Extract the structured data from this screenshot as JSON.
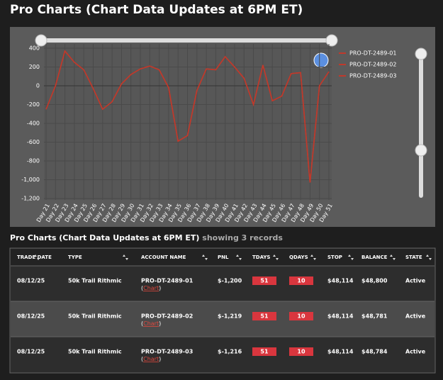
{
  "header": {
    "title": "Pro Charts (Chart Data Updates at 6PM ET)"
  },
  "chart_data": {
    "type": "line",
    "categories": [
      "Day 21",
      "Day 22",
      "Day 23",
      "Day 24",
      "Day 25",
      "Day 26",
      "Day 27",
      "Day 28",
      "Day 29",
      "Day 30",
      "Day 31",
      "Day 32",
      "Day 33",
      "Day 34",
      "Day 35",
      "Day 36",
      "Day 37",
      "Day 38",
      "Day 39",
      "Day 40",
      "Day 41",
      "Day 42",
      "Day 43",
      "Day 44",
      "Day 45",
      "Day 46",
      "Day 47",
      "Day 48",
      "Day 49",
      "Day 50",
      "Day 51"
    ],
    "series": [
      {
        "name": "PRO-DT-2489-01",
        "color": "#c0392b",
        "values": [
          -250,
          0,
          370,
          250,
          170,
          -30,
          -250,
          -170,
          20,
          120,
          180,
          210,
          170,
          -20,
          -590,
          -530,
          -50,
          180,
          170,
          310,
          200,
          80,
          -200,
          220,
          -160,
          -110,
          130,
          140,
          -1030,
          0,
          150
        ]
      },
      {
        "name": "PRO-DT-2489-02",
        "color": "#c0392b",
        "values": [
          -250,
          0,
          370,
          250,
          170,
          -30,
          -250,
          -170,
          20,
          120,
          180,
          210,
          170,
          -20,
          -590,
          -530,
          -50,
          180,
          170,
          310,
          200,
          80,
          -200,
          220,
          -160,
          -110,
          130,
          140,
          -1030,
          0,
          150
        ]
      },
      {
        "name": "PRO-DT-2489-03",
        "color": "#c0392b",
        "values": [
          -250,
          0,
          370,
          250,
          170,
          -30,
          -250,
          -170,
          20,
          120,
          180,
          210,
          170,
          -20,
          -590,
          -530,
          -50,
          180,
          170,
          310,
          200,
          80,
          -200,
          220,
          -160,
          -110,
          130,
          140,
          -1030,
          0,
          150
        ]
      }
    ],
    "ylim": [
      -1200,
      400
    ],
    "yticks": [
      {
        "value": -1200,
        "label": "-1,200"
      },
      {
        "value": -1000,
        "label": "-1,000"
      },
      -800,
      -600,
      -400,
      -200,
      0,
      200,
      400
    ],
    "grid": true,
    "legend": "right"
  },
  "table": {
    "title": "Pro Charts (Chart Data Updates at 6PM ET)",
    "subtitle": "showing 3 records",
    "columns": [
      "TRADE DATE",
      "TYPE",
      "ACCOUNT NAME",
      "PNL",
      "TDAYS",
      "QDAYS",
      "STOP",
      "BALANCE",
      "STATE"
    ],
    "rows": [
      [
        "08/12/25",
        "50k Trail Rithmic",
        "PRO-DT-2489-01",
        "$-1,200",
        "51",
        "10",
        "$48,114",
        "$48,800",
        "Active"
      ],
      [
        "08/12/25",
        "50k Trail Rithmic",
        "PRO-DT-2489-02",
        "$-1,219",
        "51",
        "10",
        "$48,114",
        "$48,781",
        "Active"
      ],
      [
        "08/12/25",
        "50k Trail Rithmic",
        "PRO-DT-2489-03",
        "$-1,216",
        "51",
        "10",
        "$48,114",
        "$48,784",
        "Active"
      ]
    ],
    "link_text": [
      "(",
      "Chart",
      ")"
    ]
  }
}
